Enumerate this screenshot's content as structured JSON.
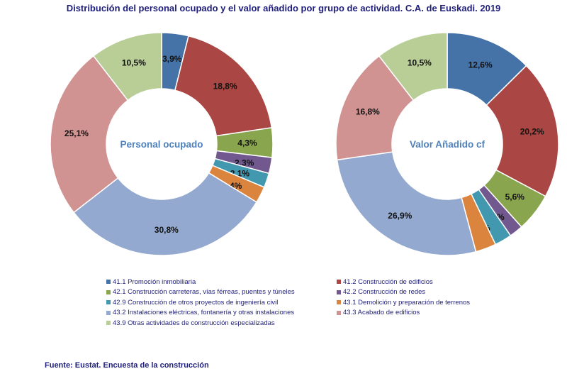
{
  "title": "Distribución del personal ocupado y el valor añadido por grupo de actividad. C.A. de Euskadi. 2019",
  "source": "Fuente: Eustat. Encuesta de la construcción",
  "categories": [
    {
      "code": "41.1",
      "name": "Promoción inmobiliaria",
      "color": "#4572a7"
    },
    {
      "code": "41.2",
      "name": "Construcción de edificios",
      "color": "#aa4643"
    },
    {
      "code": "42.1",
      "name": "Construcción carreteras, vías férreas, puentes y túneles",
      "color": "#89a54e"
    },
    {
      "code": "42.2",
      "name": "Construcción de redes",
      "color": "#71588f"
    },
    {
      "code": "42.9",
      "name": "Construcción de otros proyectos de ingeniería civil",
      "color": "#4198af"
    },
    {
      "code": "43.1",
      "name": "Demolición y preparación de terrenos",
      "color": "#db843d"
    },
    {
      "code": "43.2",
      "name": "Instalaciones eléctricas, fontanería y otras instalaciones",
      "color": "#93a9cf"
    },
    {
      "code": "43.3",
      "name": "Acabado de edificios",
      "color": "#d19392"
    },
    {
      "code": "43.9",
      "name": "Otras actividades de construcción especializadas",
      "color": "#b9cd96"
    }
  ],
  "legend": [
    {
      "label": "41.1 Promoción inmobiliaria",
      "color": "#4572a7"
    },
    {
      "label": "41.2 Construcción de edificios",
      "color": "#aa4643"
    },
    {
      "label": "42.1 Construcción carreteras, vías férreas, puentes y túneles",
      "color": "#89a54e"
    },
    {
      "label": "42.2 Construcción de redes",
      "color": "#71588f"
    },
    {
      "label": "42.9 Construcción de otros proyectos de ingeniería civil",
      "color": "#4198af"
    },
    {
      "label": "43.1 Demolición y preparación de terrenos",
      "color": "#db843d"
    },
    {
      "label": "43.2 Instalaciones eléctricas, fontanería y otras instalaciones",
      "color": "#93a9cf"
    },
    {
      "label": "43.3 Acabado de edificios",
      "color": "#d19392"
    },
    {
      "label": "43.9 Otras actividades de construcción especializadas",
      "color": "#b9cd96"
    }
  ],
  "chart_data": [
    {
      "type": "pie",
      "title": "Personal ocupado",
      "categories": [
        "41.1",
        "41.2",
        "42.1",
        "42.2",
        "42.9",
        "43.1",
        "43.2",
        "43.3",
        "43.9"
      ],
      "values": [
        3.9,
        18.8,
        4.3,
        2.3,
        2.1,
        2.4,
        30.8,
        25.1,
        10.5
      ],
      "labels": [
        "3,9%",
        "18,8%",
        "4,3%",
        "2,3%",
        "2,1%",
        "2,4%",
        "30,8%",
        "25,1%",
        "10,5%"
      ],
      "legend": "bottom"
    },
    {
      "type": "pie",
      "title": "Valor Añadido cf",
      "categories": [
        "41.1",
        "41.2",
        "42.1",
        "42.2",
        "42.9",
        "43.1",
        "43.2",
        "43.3",
        "43.9"
      ],
      "values": [
        12.6,
        20.2,
        5.6,
        2.0,
        2.5,
        3.0,
        26.9,
        16.8,
        10.5
      ],
      "labels": [
        "12,6%",
        "20,2%",
        "5,6%",
        "2,0%",
        "2,5%",
        "3,0%",
        "26,9%",
        "16,8%",
        "10,5%"
      ],
      "legend": "bottom"
    }
  ]
}
